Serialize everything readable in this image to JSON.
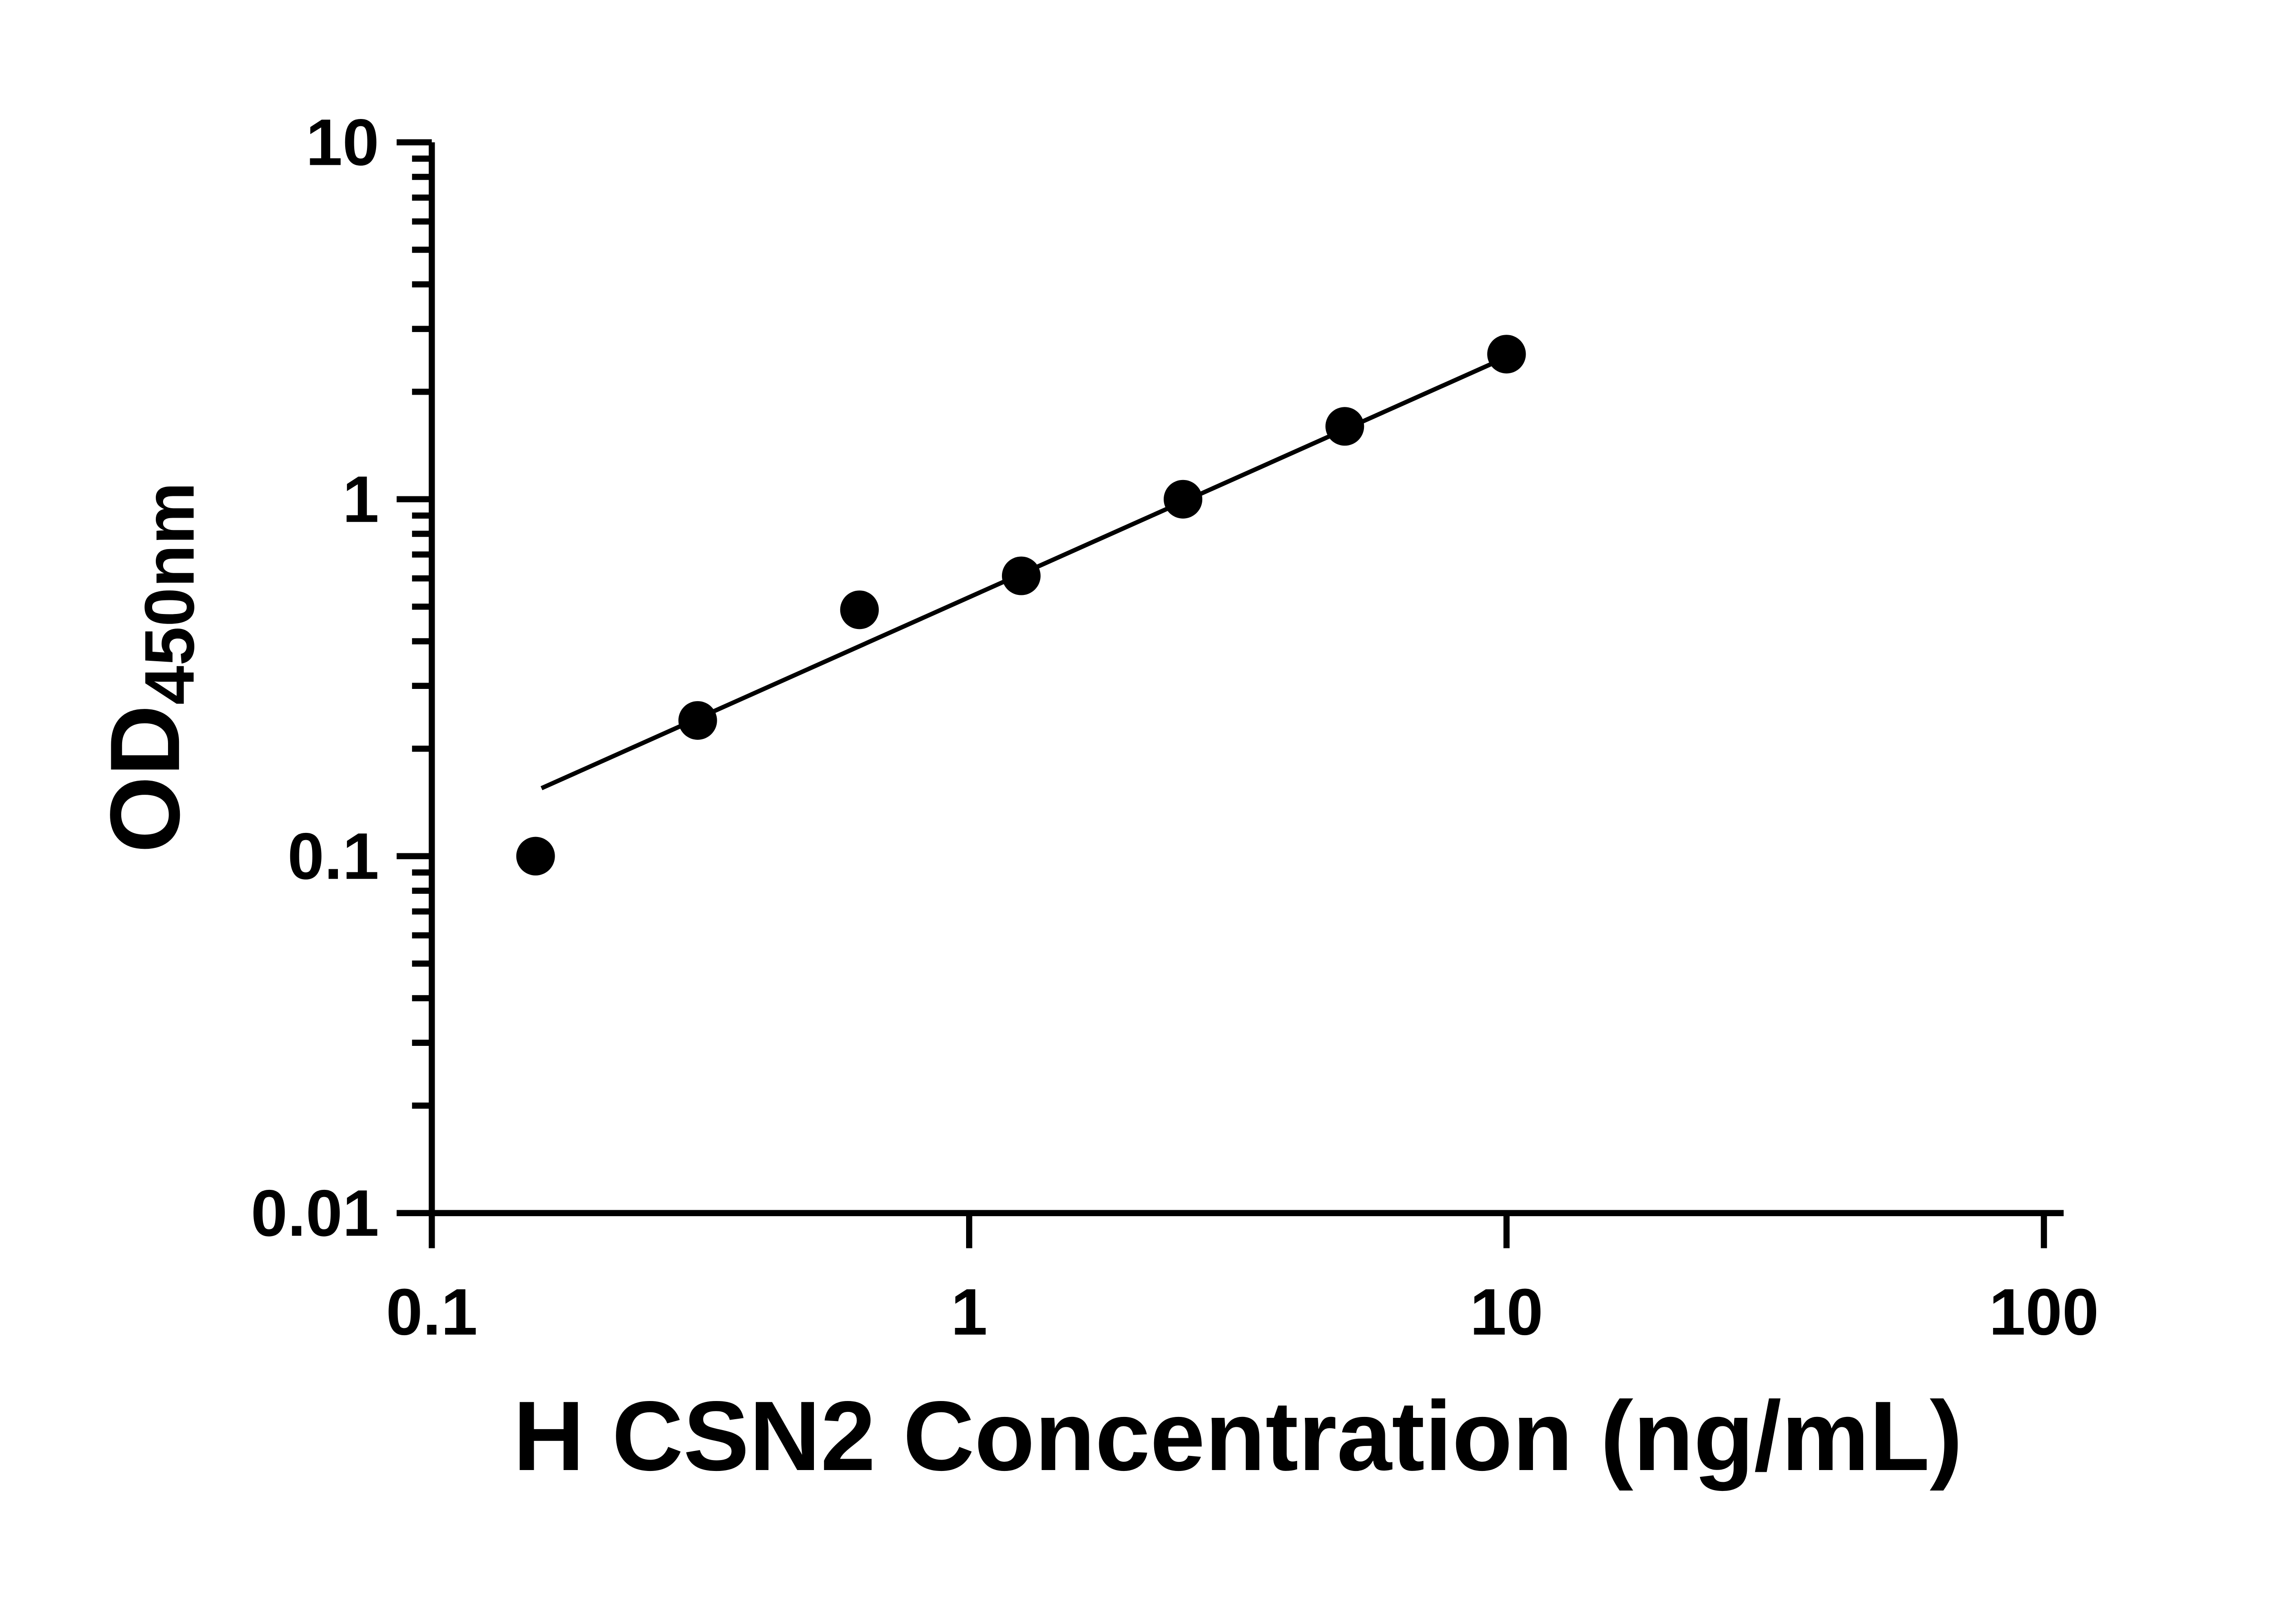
{
  "figure": {
    "background": "#ffffff",
    "description": "ELISA standard curve scatter plot with log-log axes"
  },
  "chart_data": {
    "type": "scatter",
    "title": "",
    "xlabel": "H CSN2 Concentration (ng/mL)",
    "ylabel_main": "OD",
    "ylabel_sub": "450nm",
    "x_scale": "log",
    "y_scale": "log",
    "xlim": [
      0.1,
      100
    ],
    "ylim": [
      0.01,
      10
    ],
    "grid": false,
    "legend": "none",
    "x_ticks": [
      {
        "value": 0.1,
        "label": "0.1"
      },
      {
        "value": 1,
        "label": "1"
      },
      {
        "value": 10,
        "label": "10"
      },
      {
        "value": 100,
        "label": "100"
      }
    ],
    "y_ticks": [
      {
        "value": 0.01,
        "label": "0.01"
      },
      {
        "value": 0.1,
        "label": "0.1"
      },
      {
        "value": 1,
        "label": "1"
      },
      {
        "value": 10,
        "label": "10"
      }
    ],
    "y_minor_ticks": true,
    "x_minor_ticks": false,
    "points": [
      {
        "x": 0.156,
        "y": 0.1
      },
      {
        "x": 0.3125,
        "y": 0.24
      },
      {
        "x": 0.625,
        "y": 0.49
      },
      {
        "x": 1.25,
        "y": 0.61
      },
      {
        "x": 2.5,
        "y": 1.0
      },
      {
        "x": 5,
        "y": 1.6
      },
      {
        "x": 10,
        "y": 2.55
      }
    ],
    "trend_line": {
      "x1": 0.16,
      "y1": 0.155,
      "x2": 10.6,
      "y2": 2.6
    },
    "marker_color": "#000000",
    "line_color": "#000000",
    "axis_color": "#000000"
  }
}
